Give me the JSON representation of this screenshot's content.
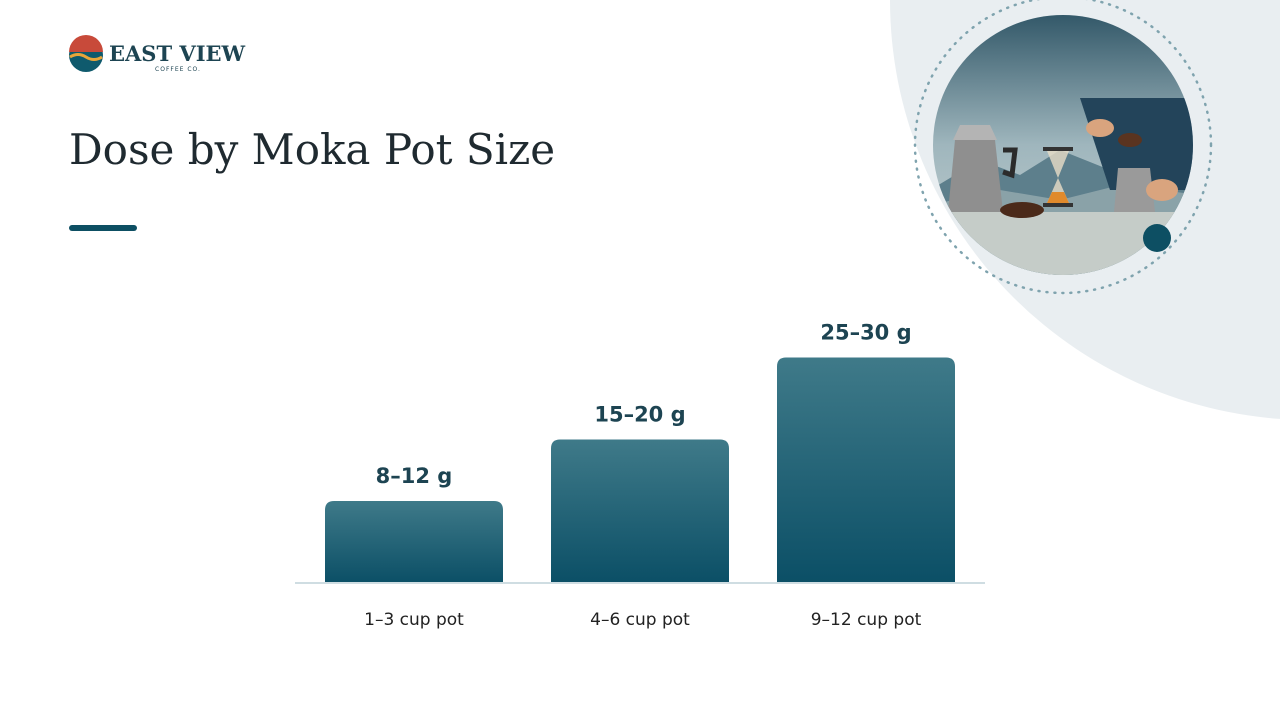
{
  "logo": {
    "name": "EAST VIEW",
    "tagline": "COFFEE CO."
  },
  "chart_data": {
    "type": "bar",
    "title": "Dose by Moka Pot Size",
    "categories": [
      "1–3 cup pot",
      "4–6 cup pot",
      "9–12 cup pot"
    ],
    "values": [
      10,
      17.5,
      27.5
    ],
    "value_labels": [
      "8–12 g",
      "15–20 g",
      "25–30 g"
    ],
    "color": "#0b4f66"
  }
}
